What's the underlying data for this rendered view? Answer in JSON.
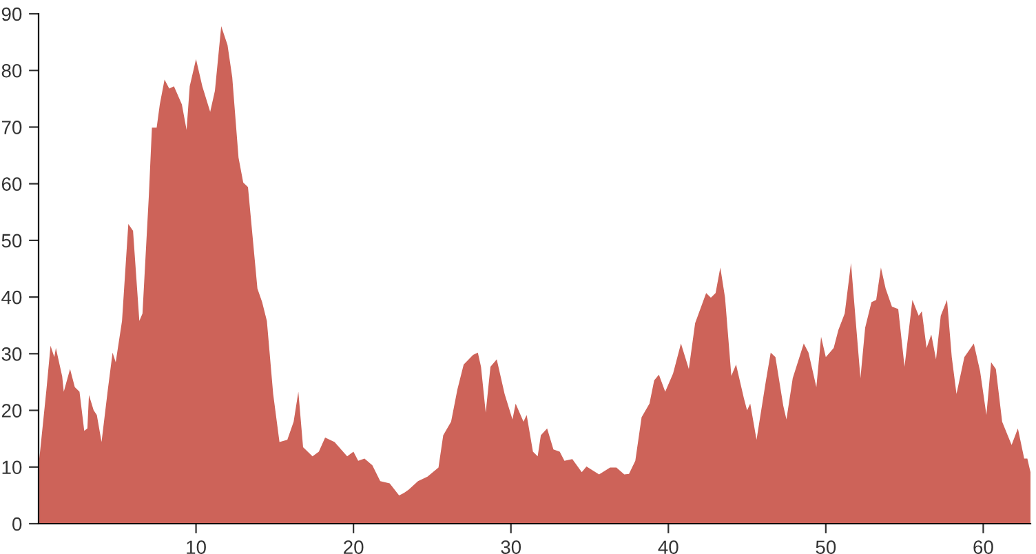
{
  "chart_data": {
    "type": "area",
    "x": [
      0.05,
      0.5,
      0.76,
      1.0,
      1.1,
      1.5,
      1.6,
      2.0,
      2.3,
      2.6,
      2.9,
      3.1,
      3.2,
      3.5,
      3.7,
      4.0,
      4.4,
      4.7,
      4.9,
      5.3,
      5.7,
      6.0,
      6.4,
      6.6,
      7.0,
      7.2,
      7.5,
      7.7,
      8.0,
      8.3,
      8.6,
      9.1,
      9.4,
      9.6,
      10.0,
      10.4,
      10.9,
      11.2,
      11.6,
      12.0,
      12.3,
      12.7,
      13.0,
      13.3,
      13.9,
      14.2,
      14.5,
      14.9,
      15.3,
      15.8,
      16.2,
      16.5,
      16.8,
      17.4,
      17.8,
      18.2,
      18.8,
      19.6,
      20.0,
      20.3,
      20.7,
      21.2,
      21.7,
      22.3,
      22.9,
      23.2,
      23.5,
      24.1,
      24.7,
      25.4,
      25.7,
      26.2,
      26.6,
      27.0,
      27.6,
      27.9,
      28.1,
      28.4,
      28.7,
      29.1,
      29.6,
      30.1,
      30.3,
      30.8,
      31.0,
      31.4,
      31.7,
      31.9,
      32.3,
      32.7,
      33.1,
      33.4,
      33.9,
      34.5,
      34.8,
      35.6,
      36.3,
      36.7,
      37.2,
      37.5,
      37.9,
      38.3,
      38.8,
      39.1,
      39.4,
      39.8,
      40.3,
      40.8,
      41.3,
      41.7,
      42.4,
      42.7,
      43.0,
      43.3,
      43.6,
      44.0,
      44.3,
      44.8,
      45.0,
      45.2,
      45.6,
      46.2,
      46.5,
      46.8,
      47.3,
      47.5,
      47.9,
      48.6,
      48.9,
      49.4,
      49.7,
      50.0,
      50.5,
      50.8,
      51.2,
      51.6,
      51.9,
      52.2,
      52.5,
      52.9,
      53.2,
      53.5,
      53.8,
      54.2,
      54.6,
      55.0,
      55.5,
      55.9,
      56.1,
      56.4,
      56.7,
      57.0,
      57.3,
      57.7,
      58.0,
      58.3,
      58.8,
      59.4,
      59.8,
      60.2,
      60.5,
      60.8,
      61.2,
      61.8,
      62.2,
      62.6,
      62.8,
      63.0
    ],
    "values": [
      11.5,
      23.7,
      31.4,
      29.4,
      31,
      26,
      23.3,
      27.3,
      24.1,
      23.3,
      16.4,
      16.8,
      22.7,
      20,
      19.2,
      14.4,
      23.7,
      30.2,
      28.5,
      35.8,
      52.9,
      51.7,
      35.8,
      37.1,
      57.7,
      69.9,
      69.9,
      74,
      78.4,
      76.8,
      77.2,
      74,
      69.5,
      77.2,
      82,
      77.2,
      72.7,
      76.4,
      87.8,
      84.5,
      78.8,
      64.6,
      60.2,
      59.4,
      41.5,
      39.1,
      35.8,
      22.9,
      14.4,
      14.8,
      18,
      23.3,
      13.5,
      11.9,
      12.7,
      15.2,
      14.4,
      11.9,
      12.7,
      11.1,
      11.5,
      10.3,
      7.5,
      7.1,
      5.0,
      5.4,
      6,
      7.5,
      8.3,
      9.9,
      15.6,
      18,
      23.7,
      28.1,
      29.8,
      30.2,
      27.7,
      19.6,
      27.7,
      29,
      22.9,
      18.4,
      21.2,
      18,
      19.2,
      12.7,
      11.9,
      15.6,
      16.8,
      13.1,
      12.7,
      11.1,
      11.4,
      9.1,
      10.1,
      8.7,
      9.9,
      9.9,
      8.7,
      8.8,
      11.1,
      18.8,
      21.2,
      25.3,
      26.3,
      23.3,
      26.5,
      31.8,
      27.3,
      35.4,
      40.7,
      39.9,
      40.7,
      45.2,
      39.9,
      26.1,
      28.1,
      22.1,
      20,
      21.2,
      14.8,
      25.3,
      30.2,
      29.4,
      20.8,
      18.4,
      25.7,
      31.8,
      30.2,
      24.1,
      33,
      29.4,
      31,
      34.2,
      37.1,
      46,
      35.8,
      25.7,
      34.6,
      39.1,
      39.5,
      45.2,
      41.5,
      38.3,
      37.9,
      27.7,
      39.5,
      36.7,
      37.5,
      31,
      33.4,
      29,
      36.7,
      39.5,
      29.4,
      22.9,
      29.4,
      31.8,
      26.9,
      19.2,
      28.5,
      27.3,
      18,
      13.9,
      16.8,
      11.5,
      11.5,
      9.1
    ],
    "color": "#cd6359",
    "xlim": [
      0,
      63
    ],
    "xticks": [
      10,
      20,
      30,
      40,
      50,
      60
    ],
    "ylim": [
      0,
      90
    ],
    "yticks": [
      0,
      10,
      20,
      30,
      40,
      50,
      60,
      70,
      80,
      90
    ],
    "grid": false
  }
}
